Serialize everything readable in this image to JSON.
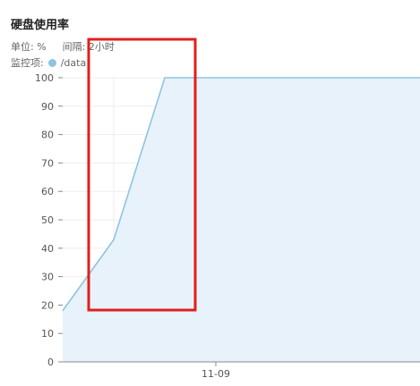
{
  "widget": {
    "title": "硬盘使用率",
    "unit_label": "单位: %",
    "interval_label": "间隔: 2小时",
    "monitor_label": "监控项:",
    "series_name": "/data"
  },
  "colors": {
    "line": "#8ec4e2",
    "fill": "#e8f2fa",
    "legend_dot": "#8ec4e2",
    "grid": "#eeeeee",
    "axis": "#888888",
    "highlight": "#e0201d"
  },
  "chart_data": {
    "type": "area",
    "title": "硬盘使用率",
    "ylim": [
      0,
      100
    ],
    "y_ticks": [
      0,
      10,
      20,
      30,
      40,
      50,
      60,
      70,
      80,
      90,
      100
    ],
    "x_tick_labels": [
      "11-09"
    ],
    "grid": true,
    "series": [
      {
        "name": "/data",
        "points": [
          {
            "x": 0,
            "y": 18
          },
          {
            "x": 1,
            "y": 43
          },
          {
            "x": 2,
            "y": 100
          },
          {
            "x": 3,
            "y": 100
          },
          {
            "x": 4,
            "y": 100
          },
          {
            "x": 5,
            "y": 100
          },
          {
            "x": 6,
            "y": 100
          },
          {
            "x": 7,
            "y": 100
          }
        ]
      }
    ],
    "x_tick_positions": [
      3
    ]
  },
  "annotation": {
    "type": "highlight-box",
    "x_range": [
      0.5,
      2.6
    ],
    "y_range": [
      18,
      100
    ]
  }
}
